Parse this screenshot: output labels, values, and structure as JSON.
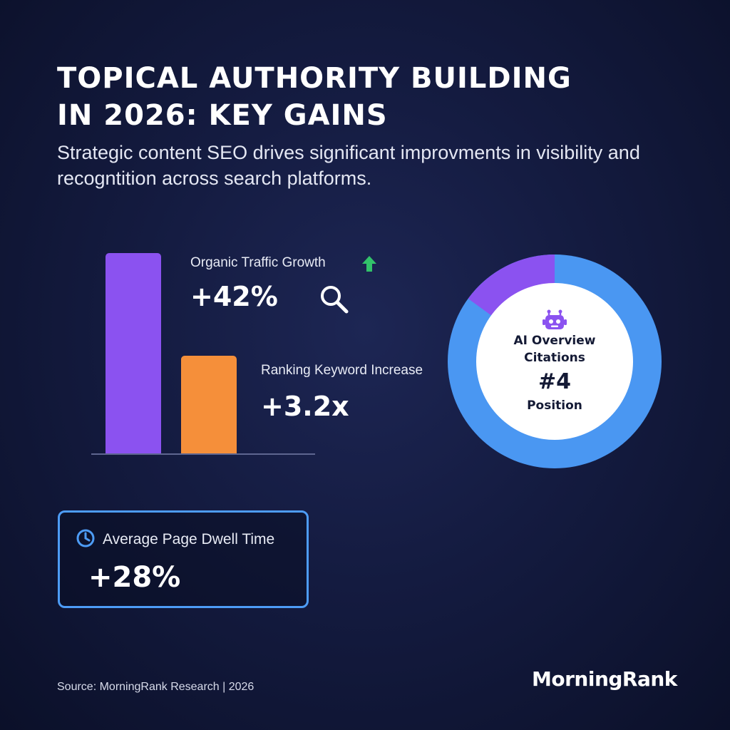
{
  "header": {
    "title_line1": "TOPICAL AUTHORITY BUILDING",
    "title_line2": "IN 2026: KEY GAINS",
    "subtitle": "Strategic content SEO drives significant improvments in visibility and recogntition across search platforms."
  },
  "chart_data": [
    {
      "type": "bar",
      "categories": [
        "Organic Traffic Growth",
        "Ranking Keyword Increase"
      ],
      "values": [
        100,
        49
      ],
      "data_labels": [
        "+42%",
        "+3.2x"
      ],
      "colors": [
        "#8b52f0",
        "#f58f3a"
      ],
      "title": "",
      "xlabel": "",
      "ylabel": "",
      "grid": false
    },
    {
      "type": "pie",
      "style": "donut",
      "slices": [
        {
          "segment": "blue",
          "fraction": 0.85,
          "color": "#4a97f2"
        },
        {
          "segment": "purple",
          "fraction": 0.15,
          "color": "#8b52f0"
        }
      ],
      "center_label": "AI Overview Citations",
      "center_value": "#4",
      "center_caption": "Position"
    }
  ],
  "metrics": {
    "dwell_time": {
      "label": "Average Page Dwell Time",
      "value": "+28%"
    }
  },
  "icons": {
    "trend": "arrow-up-icon",
    "search": "magnifier-icon",
    "ai": "robot-icon",
    "clock": "clock-icon"
  },
  "colors": {
    "accent_green": "#32c26a",
    "accent_blue": "#4d9cf6",
    "accent_purple": "#8b52f0",
    "accent_orange": "#f58f3a"
  },
  "footer": {
    "source": "Source: MorningRank Research | 2026",
    "brand": "MorningRank"
  }
}
